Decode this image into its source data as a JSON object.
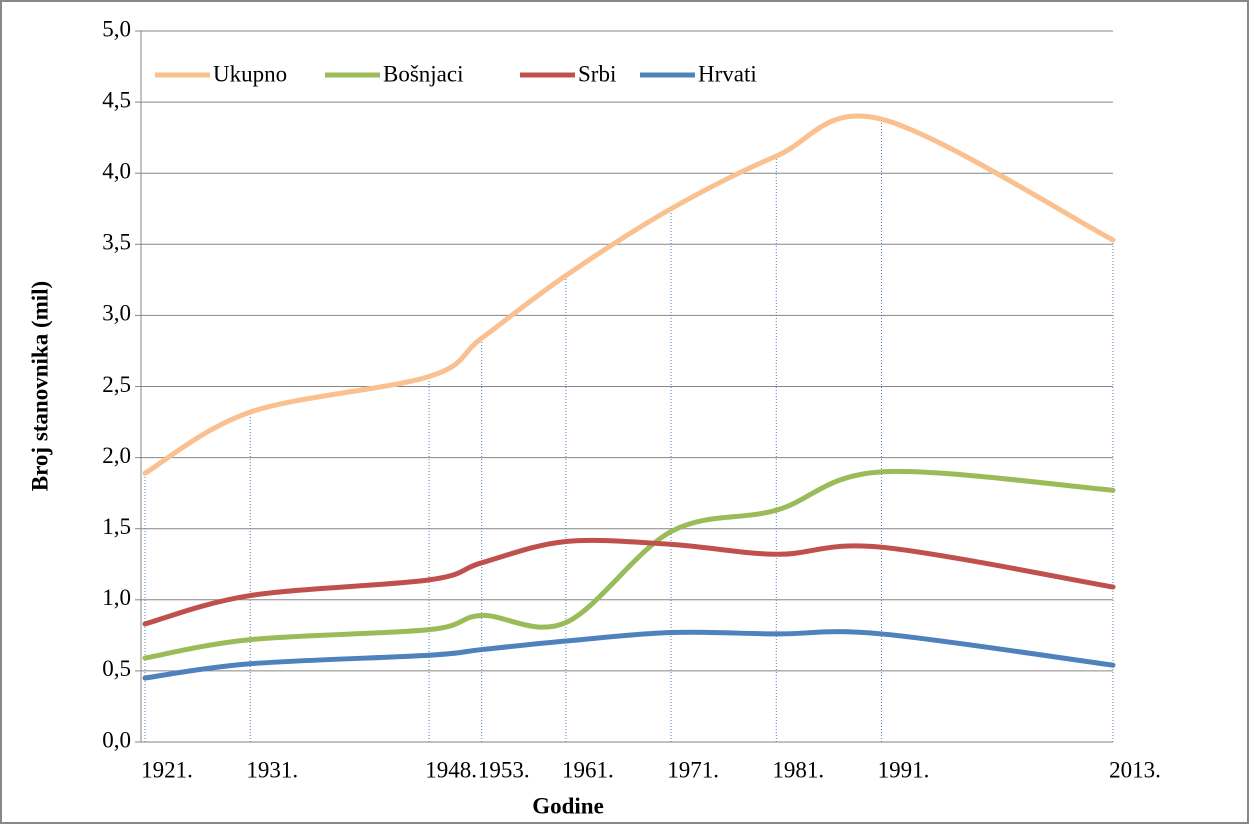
{
  "chart_data": {
    "type": "line",
    "x_label": "Godine",
    "y_label": "Broj stanovnika (mil)",
    "x": [
      1921,
      1931,
      1948,
      1953,
      1961,
      1971,
      1981,
      1991,
      2013
    ],
    "xlim": [
      1921,
      2013
    ],
    "xticks": [
      {
        "value": 1921,
        "label": "1921."
      },
      {
        "value": 1931,
        "label": "1931."
      },
      {
        "value": 1948,
        "label": "1948."
      },
      {
        "value": 1953,
        "label": "1953."
      },
      {
        "value": 1961,
        "label": "1961."
      },
      {
        "value": 1971,
        "label": "1971."
      },
      {
        "value": 1981,
        "label": "1981."
      },
      {
        "value": 1991,
        "label": "1991."
      },
      {
        "value": 2013,
        "label": "2013."
      }
    ],
    "ylim": [
      0,
      5
    ],
    "yticks": [
      {
        "value": 0,
        "label": "0,0"
      },
      {
        "value": 0.5,
        "label": "0,5"
      },
      {
        "value": 1,
        "label": "1,0"
      },
      {
        "value": 1.5,
        "label": "1,5"
      },
      {
        "value": 2,
        "label": "2,0"
      },
      {
        "value": 2.5,
        "label": "2,5"
      },
      {
        "value": 3,
        "label": "3,0"
      },
      {
        "value": 3.5,
        "label": "3,5"
      },
      {
        "value": 4,
        "label": "4,0"
      },
      {
        "value": 4.5,
        "label": "4,5"
      },
      {
        "value": 5,
        "label": "5,0"
      }
    ],
    "grid": true,
    "legend": "top-left",
    "series": [
      {
        "name": "Ukupno",
        "color": "#fac090",
        "values": [
          1.89,
          2.32,
          2.57,
          2.84,
          3.28,
          3.75,
          4.12,
          4.38,
          3.53
        ]
      },
      {
        "name": "Bošnjaci",
        "color": "#9bbb59",
        "values": [
          0.59,
          0.72,
          0.79,
          0.89,
          0.84,
          1.48,
          1.63,
          1.9,
          1.77
        ]
      },
      {
        "name": "Srbi",
        "color": "#c0504d",
        "values": [
          0.83,
          1.03,
          1.14,
          1.26,
          1.41,
          1.39,
          1.32,
          1.37,
          1.09
        ]
      },
      {
        "name": "Hrvati",
        "color": "#4f81bd",
        "values": [
          0.45,
          0.55,
          0.61,
          0.65,
          0.71,
          0.77,
          0.76,
          0.76,
          0.54
        ]
      }
    ]
  }
}
